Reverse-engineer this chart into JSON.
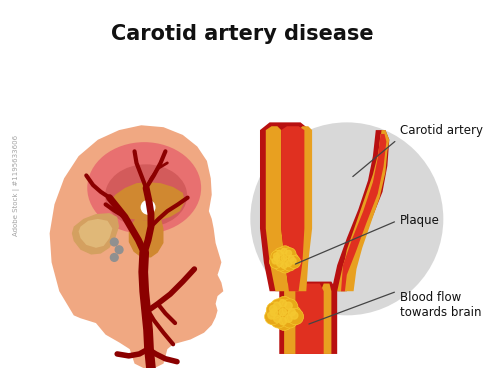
{
  "title": "Carotid artery disease",
  "title_fontsize": 15,
  "title_fontweight": "bold",
  "background_color": "#ffffff",
  "labels": {
    "carotid_artery": "Carotid artery",
    "plaque": "Plaque",
    "blood_flow": "Blood flow\ntowards brain"
  },
  "colors": {
    "skin": "#F0A882",
    "skin_shadow": "#E8906A",
    "brain_pink": "#E87070",
    "brain_mid": "#C85050",
    "brain_brown": "#C07840",
    "brainstem_orange": "#D08830",
    "cerebellum": "#D4A060",
    "cerebellum_light": "#E0B878",
    "artery_dark": "#8B0000",
    "artery_wall": "#B81010",
    "artery_lumen": "#E03020",
    "artery_yellow": "#E8A020",
    "plaque_gold": "#E8A818",
    "plaque_light": "#F5C830",
    "circle_bg": "#D4D4D4",
    "annotation_line": "#444444",
    "white_spot": "#FFFFFF",
    "gray_dot": "#909090"
  },
  "watermark": "Adobe Stock | #1195633606"
}
